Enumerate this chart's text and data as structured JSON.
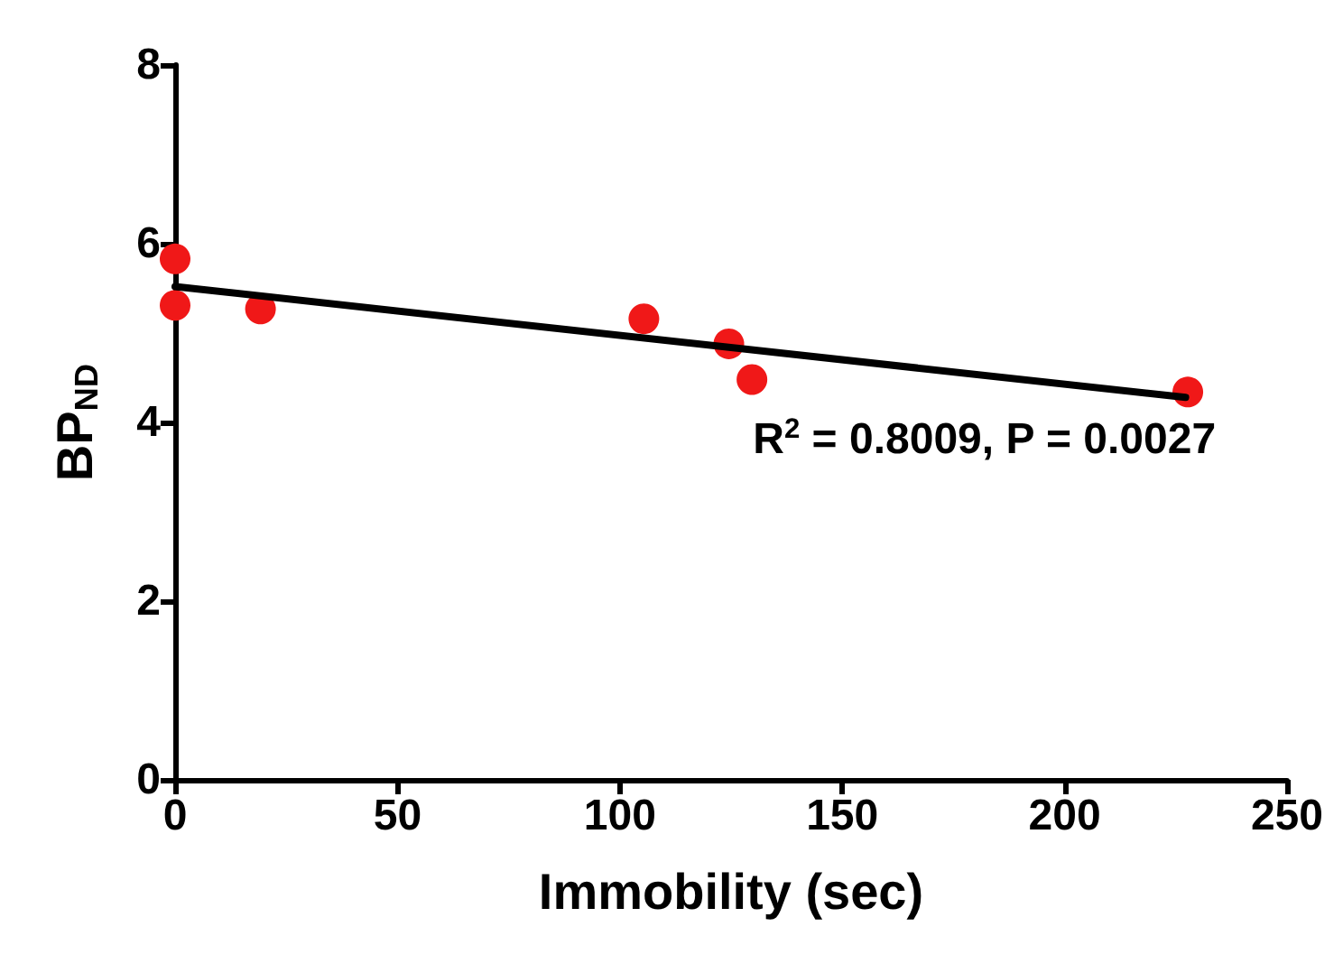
{
  "chart_data": {
    "type": "scatter",
    "xlabel": "Immobility (sec)",
    "ylabel": "BP$_{ND}$",
    "xlim": [
      0,
      250
    ],
    "xticks": [
      0,
      50,
      100,
      150,
      200,
      250
    ],
    "ylim": [
      0,
      8
    ],
    "yticks": [
      0,
      2,
      4,
      6,
      8
    ],
    "grid": false,
    "marker": "circle",
    "series": [
      {
        "color": "#f01818",
        "x": [
          0,
          0,
          19.2,
          105.4,
          124.5,
          129.7,
          227.7
        ],
        "values": [
          5.83,
          5.31,
          5.27,
          5.16,
          4.88,
          4.48,
          4.34
        ]
      },
      {
        "type": "line",
        "color": "#000000",
        "marker": "none",
        "line_style": "solid",
        "x": [
          0,
          227.2
        ],
        "values": [
          5.52,
          4.28
        ]
      }
    ],
    "annotations": [
      "R$^{2}$ = 0.8009, P = 0.0027"
    ]
  }
}
